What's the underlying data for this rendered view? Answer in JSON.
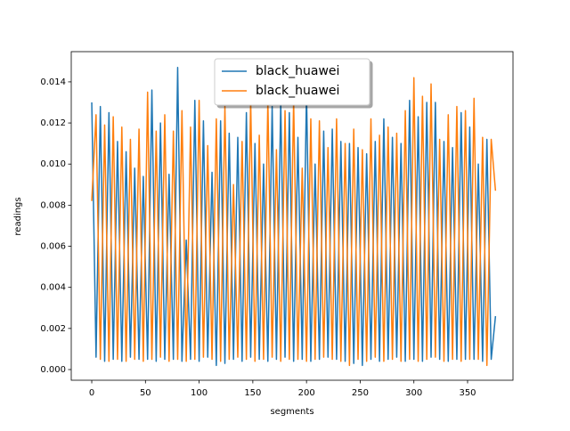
{
  "chart_data": {
    "type": "line",
    "x_label": "segments",
    "y_label": "readings",
    "x": [
      0,
      4,
      8,
      12,
      16,
      20,
      24,
      28,
      32,
      36,
      40,
      44,
      48,
      52,
      56,
      60,
      64,
      68,
      72,
      76,
      80,
      84,
      88,
      92,
      96,
      100,
      104,
      108,
      112,
      116,
      120,
      124,
      128,
      132,
      136,
      140,
      144,
      148,
      152,
      156,
      160,
      164,
      168,
      172,
      176,
      180,
      184,
      188,
      192,
      196,
      200,
      204,
      208,
      212,
      216,
      220,
      224,
      228,
      232,
      236,
      240,
      244,
      248,
      252,
      256,
      260,
      264,
      268,
      272,
      276,
      280,
      284,
      288,
      292,
      296,
      300,
      304,
      308,
      312,
      316,
      320,
      324,
      328,
      332,
      336,
      340,
      344,
      348,
      352,
      356,
      360,
      364,
      368,
      372,
      376
    ],
    "series": [
      {
        "name": "black_huawei",
        "color": "#1f77b4",
        "values": [
          0.013,
          0.0006,
          0.0128,
          0.0004,
          0.0125,
          0.0005,
          0.0111,
          0.0004,
          0.0106,
          0.0006,
          0.0098,
          0.0005,
          0.0094,
          0.0005,
          0.0136,
          0.0004,
          0.012,
          0.0005,
          0.0095,
          0.0005,
          0.0147,
          0.0004,
          0.0063,
          0.0005,
          0.0131,
          0.0004,
          0.0121,
          0.0006,
          0.0096,
          0.0002,
          0.0121,
          0.0003,
          0.0115,
          0.0005,
          0.0113,
          0.0004,
          0.0125,
          0.0006,
          0.011,
          0.0005,
          0.01,
          0.0004,
          0.0128,
          0.0005,
          0.013,
          0.0006,
          0.0125,
          0.0004,
          0.0113,
          0.0005,
          0.0135,
          0.0004,
          0.01,
          0.0005,
          0.0116,
          0.0006,
          0.0117,
          0.0005,
          0.0111,
          0.0004,
          0.011,
          0.0003,
          0.0108,
          0.0002,
          0.0105,
          0.0005,
          0.0111,
          0.0004,
          0.0122,
          0.0005,
          0.0113,
          0.0006,
          0.011,
          0.0004,
          0.0131,
          0.0005,
          0.0123,
          0.0004,
          0.013,
          0.0006,
          0.013,
          0.0005,
          0.0111,
          0.0004,
          0.0108,
          0.0005,
          0.0125,
          0.0005,
          0.0118,
          0.0005,
          0.01,
          0.0004,
          0.0112,
          0.0005,
          0.0026
        ]
      },
      {
        "name": "black_huawei",
        "color": "#ff7f0e",
        "values": [
          0.0082,
          0.0124,
          0.0005,
          0.0119,
          0.0004,
          0.0123,
          0.0005,
          0.0118,
          0.0004,
          0.0112,
          0.0005,
          0.0117,
          0.0004,
          0.0135,
          0.0005,
          0.0116,
          0.0006,
          0.0124,
          0.0004,
          0.0116,
          0.0005,
          0.0126,
          0.0004,
          0.0118,
          0.0005,
          0.0131,
          0.0006,
          0.0109,
          0.0005,
          0.0122,
          0.0004,
          0.0128,
          0.0005,
          0.009,
          0.0006,
          0.0111,
          0.0005,
          0.0131,
          0.0004,
          0.0114,
          0.0005,
          0.0131,
          0.0006,
          0.0107,
          0.0004,
          0.0126,
          0.0005,
          0.0131,
          0.0005,
          0.0098,
          0.0004,
          0.0122,
          0.0005,
          0.0121,
          0.0006,
          0.0108,
          0.0005,
          0.0122,
          0.0004,
          0.011,
          0.0002,
          0.0117,
          0.0005,
          0.0107,
          0.0004,
          0.0122,
          0.0006,
          0.0114,
          0.0004,
          0.0118,
          0.0005,
          0.0115,
          0.0004,
          0.0126,
          0.0005,
          0.0142,
          0.0004,
          0.0133,
          0.0005,
          0.0139,
          0.0006,
          0.0112,
          0.0004,
          0.0124,
          0.0005,
          0.0128,
          0.0004,
          0.0126,
          0.0005,
          0.0132,
          0.0005,
          0.0113,
          0.0002,
          0.0112,
          0.0087
        ]
      }
    ],
    "xlim": [
      -19.1,
      392.3
    ],
    "xticks": [
      0,
      50,
      100,
      150,
      200,
      250,
      300,
      350
    ],
    "ylim": [
      -0.00052,
      0.01547
    ],
    "yticks": [
      {
        "value": 0,
        "label": "0.000"
      },
      {
        "value": 0.002,
        "label": "0.002"
      },
      {
        "value": 0.004,
        "label": "0.004"
      },
      {
        "value": 0.006,
        "label": "0.006"
      },
      {
        "value": 0.008,
        "label": "0.008"
      },
      {
        "value": 0.01,
        "label": "0.010"
      },
      {
        "value": 0.012,
        "label": "0.012"
      },
      {
        "value": 0.014,
        "label": "0.014"
      }
    ],
    "legend": "upper center"
  }
}
